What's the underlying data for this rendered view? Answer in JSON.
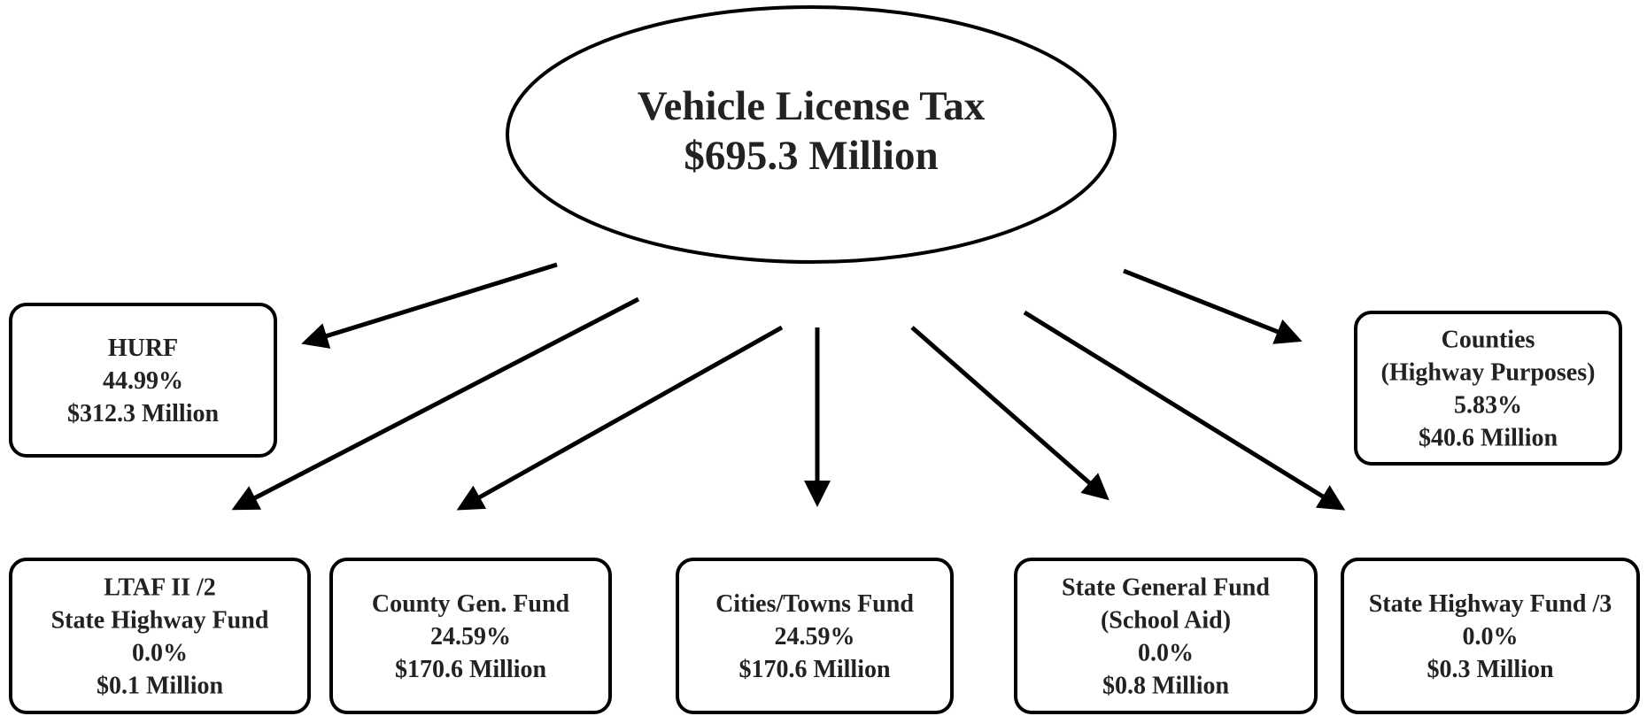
{
  "title": {
    "lines": [
      "Vehicle License Tax",
      "$695.3 Million"
    ]
  },
  "nodes": [
    {
      "lines": [
        "HURF",
        "44.99%",
        "$312.3 Million"
      ]
    },
    {
      "lines": [
        "Counties",
        "(Highway Purposes)",
        "5.83%",
        "$40.6 Million"
      ]
    },
    {
      "lines": [
        "LTAF II /2",
        "State Highway Fund",
        "0.0%",
        "$0.1 Million"
      ]
    },
    {
      "lines": [
        "County Gen. Fund",
        "24.59%",
        "$170.6 Million"
      ]
    },
    {
      "lines": [
        "Cities/Towns Fund",
        "24.59%",
        "$170.6 Million"
      ]
    },
    {
      "lines": [
        "State General Fund",
        "(School Aid)",
        "0.0%",
        "$0.8 Million"
      ]
    },
    {
      "lines": [
        "State Highway Fund /3",
        "0.0%",
        "$0.3 Million"
      ]
    }
  ]
}
